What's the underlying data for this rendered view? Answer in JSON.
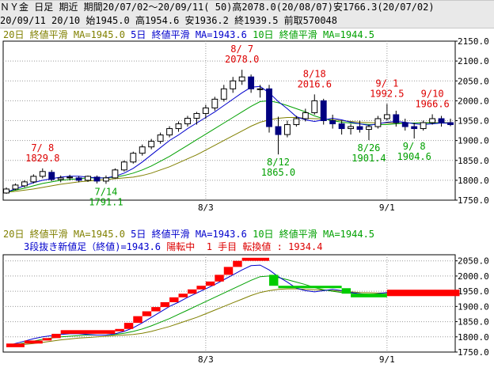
{
  "header": {
    "line1": "ＮＹ金 日足 期近 期間20/07/02～20/09/11( 50)高2078.0(20/08/07)安1766.3(20/07/02)",
    "line2": "20/09/11 20/10 始1945.0 高1954.6 安1936.2 終1939.5 前取570048"
  },
  "legend": {
    "ma20": "20日 終値平滑 MA=1945.0",
    "ma5": "5日 終値平滑 MA=1943.6",
    "ma10": "10日 終値平滑 MA=1944.5"
  },
  "status": {
    "line_break": "3段抜き新値足（終値)=1943.6",
    "trend": "陽転中",
    "step": "1 手目",
    "reversal": "転換値 : 1934.4"
  },
  "colors": {
    "ma20": "#808000",
    "ma5": "#0000cc",
    "ma10": "#00a000",
    "candle_up_border": "#000000",
    "candle_down_fill": "#000080",
    "high_label": "#dd0000",
    "low_label": "#00a000",
    "break_up": "#ff0000",
    "break_down": "#00cc00"
  },
  "chart_data": [
    {
      "type": "candlestick",
      "ylim": [
        1750,
        2150
      ],
      "y_ticks": [
        "2150.0",
        "2100.0",
        "2050.0",
        "2000.0",
        "1950.0",
        "1900.0",
        "1850.0",
        "1800.0",
        "1750.0"
      ],
      "x_ticks": [
        {
          "label": "8/3",
          "index": 22
        },
        {
          "label": "9/1",
          "index": 42
        }
      ],
      "candles": [
        {
          "o": 1768,
          "h": 1782,
          "l": 1766,
          "c": 1778
        },
        {
          "o": 1778,
          "h": 1792,
          "l": 1775,
          "c": 1788
        },
        {
          "o": 1786,
          "h": 1800,
          "l": 1782,
          "c": 1796
        },
        {
          "o": 1796,
          "h": 1815,
          "l": 1792,
          "c": 1810
        },
        {
          "o": 1810,
          "h": 1830,
          "l": 1805,
          "c": 1822
        },
        {
          "o": 1820,
          "h": 1826,
          "l": 1798,
          "c": 1802
        },
        {
          "o": 1802,
          "h": 1812,
          "l": 1795,
          "c": 1806
        },
        {
          "o": 1806,
          "h": 1814,
          "l": 1800,
          "c": 1808
        },
        {
          "o": 1806,
          "h": 1810,
          "l": 1795,
          "c": 1800
        },
        {
          "o": 1800,
          "h": 1812,
          "l": 1796,
          "c": 1810
        },
        {
          "o": 1808,
          "h": 1812,
          "l": 1792,
          "c": 1798
        },
        {
          "o": 1798,
          "h": 1812,
          "l": 1791,
          "c": 1806
        },
        {
          "o": 1806,
          "h": 1830,
          "l": 1804,
          "c": 1826
        },
        {
          "o": 1826,
          "h": 1850,
          "l": 1822,
          "c": 1846
        },
        {
          "o": 1846,
          "h": 1872,
          "l": 1842,
          "c": 1868
        },
        {
          "o": 1868,
          "h": 1890,
          "l": 1862,
          "c": 1884
        },
        {
          "o": 1884,
          "h": 1904,
          "l": 1878,
          "c": 1898
        },
        {
          "o": 1898,
          "h": 1920,
          "l": 1892,
          "c": 1914
        },
        {
          "o": 1914,
          "h": 1936,
          "l": 1908,
          "c": 1930
        },
        {
          "o": 1930,
          "h": 1948,
          "l": 1922,
          "c": 1942
        },
        {
          "o": 1942,
          "h": 1962,
          "l": 1935,
          "c": 1956
        },
        {
          "o": 1956,
          "h": 1972,
          "l": 1940,
          "c": 1968
        },
        {
          "o": 1968,
          "h": 1990,
          "l": 1955,
          "c": 1982
        },
        {
          "o": 1982,
          "h": 2010,
          "l": 1975,
          "c": 2004
        },
        {
          "o": 2004,
          "h": 2040,
          "l": 1998,
          "c": 2030
        },
        {
          "o": 2030,
          "h": 2060,
          "l": 2020,
          "c": 2050
        },
        {
          "o": 2050,
          "h": 2078,
          "l": 2040,
          "c": 2060
        },
        {
          "o": 2060,
          "h": 2066,
          "l": 2020,
          "c": 2030
        },
        {
          "o": 2028,
          "h": 2040,
          "l": 2008,
          "c": 2030
        },
        {
          "o": 2030,
          "h": 2040,
          "l": 1920,
          "c": 1935
        },
        {
          "o": 1935,
          "h": 1960,
          "l": 1865,
          "c": 1915
        },
        {
          "o": 1915,
          "h": 1950,
          "l": 1908,
          "c": 1940
        },
        {
          "o": 1940,
          "h": 1962,
          "l": 1935,
          "c": 1955
        },
        {
          "o": 1955,
          "h": 1980,
          "l": 1948,
          "c": 1970
        },
        {
          "o": 1970,
          "h": 2016,
          "l": 1965,
          "c": 2000
        },
        {
          "o": 2000,
          "h": 2005,
          "l": 1940,
          "c": 1950
        },
        {
          "o": 1950,
          "h": 1965,
          "l": 1930,
          "c": 1942
        },
        {
          "o": 1942,
          "h": 1950,
          "l": 1915,
          "c": 1930
        },
        {
          "o": 1930,
          "h": 1942,
          "l": 1915,
          "c": 1935
        },
        {
          "o": 1935,
          "h": 1950,
          "l": 1920,
          "c": 1928
        },
        {
          "o": 1928,
          "h": 1940,
          "l": 1901,
          "c": 1935
        },
        {
          "o": 1935,
          "h": 1962,
          "l": 1930,
          "c": 1955
        },
        {
          "o": 1955,
          "h": 1992,
          "l": 1950,
          "c": 1965
        },
        {
          "o": 1965,
          "h": 1975,
          "l": 1935,
          "c": 1945
        },
        {
          "o": 1945,
          "h": 1955,
          "l": 1925,
          "c": 1935
        },
        {
          "o": 1935,
          "h": 1945,
          "l": 1905,
          "c": 1930
        },
        {
          "o": 1930,
          "h": 1950,
          "l": 1925,
          "c": 1945
        },
        {
          "o": 1945,
          "h": 1966,
          "l": 1940,
          "c": 1955
        },
        {
          "o": 1955,
          "h": 1962,
          "l": 1935,
          "c": 1945
        },
        {
          "o": 1945,
          "h": 1955,
          "l": 1936,
          "c": 1940
        }
      ],
      "ma5": [
        1770,
        1778,
        1786,
        1794,
        1800,
        1804,
        1808,
        1810,
        1810,
        1808,
        1806,
        1806,
        1810,
        1818,
        1830,
        1846,
        1864,
        1882,
        1900,
        1914,
        1930,
        1944,
        1958,
        1972,
        1988,
        2004,
        2020,
        2034,
        2036,
        2020,
        1998,
        1980,
        1960,
        1952,
        1948,
        1952,
        1956,
        1952,
        1946,
        1942,
        1938,
        1942,
        1946,
        1948,
        1946,
        1942,
        1940,
        1942,
        1944,
        1943.6
      ],
      "ma10": [
        1770,
        1775,
        1780,
        1786,
        1792,
        1796,
        1800,
        1802,
        1804,
        1806,
        1806,
        1806,
        1808,
        1812,
        1818,
        1826,
        1836,
        1848,
        1860,
        1874,
        1888,
        1902,
        1916,
        1930,
        1944,
        1958,
        1972,
        1986,
        1998,
        2000,
        1995,
        1988,
        1980,
        1972,
        1962,
        1955,
        1950,
        1946,
        1944,
        1942,
        1940,
        1940,
        1940,
        1942,
        1944,
        1944,
        1944,
        1944,
        1944,
        1944.5
      ],
      "ma20": [
        1770,
        1772,
        1775,
        1778,
        1782,
        1786,
        1790,
        1793,
        1796,
        1798,
        1800,
        1802,
        1804,
        1806,
        1808,
        1812,
        1818,
        1826,
        1834,
        1844,
        1854,
        1864,
        1876,
        1888,
        1900,
        1912,
        1924,
        1936,
        1946,
        1952,
        1956,
        1958,
        1958,
        1956,
        1955,
        1954,
        1952,
        1950,
        1948,
        1946,
        1945,
        1944,
        1944,
        1944,
        1944,
        1944,
        1945,
        1945,
        1945,
        1945.0
      ],
      "annotations": [
        {
          "date": "7/ 8",
          "value": "1829.8",
          "index": 4,
          "price": 1830,
          "kind": "high"
        },
        {
          "date": "7/14",
          "value": "1791.1",
          "index": 11,
          "price": 1791,
          "kind": "low"
        },
        {
          "date": "8/ 7",
          "value": "2078.0",
          "index": 26,
          "price": 2078,
          "kind": "high"
        },
        {
          "date": "8/12",
          "value": "1865.0",
          "index": 30,
          "price": 1865,
          "kind": "low"
        },
        {
          "date": "8/18",
          "value": "2016.6",
          "index": 34,
          "price": 2016,
          "kind": "high"
        },
        {
          "date": "8/26",
          "value": "1901.4",
          "index": 40,
          "price": 1901,
          "kind": "low"
        },
        {
          "date": "9/ 1",
          "value": "1992.5",
          "index": 42,
          "price": 1992,
          "kind": "high"
        },
        {
          "date": "9/ 8",
          "value": "1904.6",
          "index": 45,
          "price": 1905,
          "kind": "low"
        },
        {
          "date": "9/10",
          "value": "1966.6",
          "index": 47,
          "price": 1966,
          "kind": "high"
        }
      ]
    },
    {
      "type": "three-line-break",
      "ylim": [
        1750,
        2070
      ],
      "y_ticks": [
        "2050.0",
        "2000.0",
        "1950.0",
        "1900.0",
        "1850.0",
        "1800.0",
        "1750.0"
      ],
      "x_ticks": [
        {
          "label": "8/3",
          "index": 22
        },
        {
          "label": "9/1",
          "index": 42
        }
      ],
      "bricks": [
        {
          "from": 1766,
          "to": 1778,
          "up": true,
          "i0": 0,
          "i1": 2
        },
        {
          "from": 1778,
          "to": 1788,
          "up": true,
          "i0": 2,
          "i1": 4
        },
        {
          "from": 1788,
          "to": 1796,
          "up": true,
          "i0": 4,
          "i1": 5
        },
        {
          "from": 1796,
          "to": 1810,
          "up": true,
          "i0": 5,
          "i1": 6
        },
        {
          "from": 1810,
          "to": 1822,
          "up": true,
          "i0": 6,
          "i1": 12
        },
        {
          "from": 1822,
          "to": 1826,
          "up": true,
          "i0": 12,
          "i1": 13
        },
        {
          "from": 1826,
          "to": 1846,
          "up": true,
          "i0": 13,
          "i1": 14
        },
        {
          "from": 1846,
          "to": 1868,
          "up": true,
          "i0": 14,
          "i1": 15
        },
        {
          "from": 1868,
          "to": 1884,
          "up": true,
          "i0": 15,
          "i1": 16
        },
        {
          "from": 1884,
          "to": 1898,
          "up": true,
          "i0": 16,
          "i1": 17
        },
        {
          "from": 1898,
          "to": 1914,
          "up": true,
          "i0": 17,
          "i1": 18
        },
        {
          "from": 1914,
          "to": 1930,
          "up": true,
          "i0": 18,
          "i1": 19
        },
        {
          "from": 1930,
          "to": 1942,
          "up": true,
          "i0": 19,
          "i1": 20
        },
        {
          "from": 1942,
          "to": 1956,
          "up": true,
          "i0": 20,
          "i1": 21
        },
        {
          "from": 1956,
          "to": 1968,
          "up": true,
          "i0": 21,
          "i1": 22
        },
        {
          "from": 1968,
          "to": 1982,
          "up": true,
          "i0": 22,
          "i1": 23
        },
        {
          "from": 1982,
          "to": 2004,
          "up": true,
          "i0": 23,
          "i1": 24
        },
        {
          "from": 2004,
          "to": 2030,
          "up": true,
          "i0": 24,
          "i1": 25
        },
        {
          "from": 2030,
          "to": 2050,
          "up": true,
          "i0": 25,
          "i1": 26
        },
        {
          "from": 2050,
          "to": 2060,
          "up": true,
          "i0": 26,
          "i1": 29
        },
        {
          "from": 2004,
          "to": 1968,
          "up": false,
          "i0": 29,
          "i1": 30
        },
        {
          "from": 1968,
          "to": 1960,
          "up": false,
          "i0": 30,
          "i1": 37
        },
        {
          "from": 1960,
          "to": 1942,
          "up": false,
          "i0": 37,
          "i1": 38
        },
        {
          "from": 1942,
          "to": 1930,
          "up": false,
          "i0": 38,
          "i1": 42
        },
        {
          "from": 1934,
          "to": 1955,
          "up": true,
          "i0": 42,
          "i1": 50
        }
      ],
      "ma5": [
        1770,
        1778,
        1786,
        1794,
        1800,
        1804,
        1808,
        1810,
        1810,
        1808,
        1806,
        1806,
        1810,
        1818,
        1830,
        1846,
        1864,
        1882,
        1900,
        1914,
        1930,
        1944,
        1958,
        1972,
        1988,
        2004,
        2020,
        2034,
        2036,
        2020,
        1998,
        1980,
        1960,
        1952,
        1948,
        1952,
        1956,
        1952,
        1946,
        1942,
        1938,
        1942,
        1946,
        1948,
        1946,
        1942,
        1940,
        1942,
        1944,
        1943.6
      ],
      "ma10": [
        1770,
        1775,
        1780,
        1786,
        1792,
        1796,
        1800,
        1802,
        1804,
        1806,
        1806,
        1806,
        1808,
        1812,
        1818,
        1826,
        1836,
        1848,
        1860,
        1874,
        1888,
        1902,
        1916,
        1930,
        1944,
        1958,
        1972,
        1986,
        1998,
        2000,
        1995,
        1988,
        1980,
        1972,
        1962,
        1955,
        1950,
        1946,
        1944,
        1942,
        1940,
        1940,
        1940,
        1942,
        1944,
        1944,
        1944,
        1944,
        1944,
        1944.5
      ],
      "ma20": [
        1770,
        1772,
        1775,
        1778,
        1782,
        1786,
        1790,
        1793,
        1796,
        1798,
        1800,
        1802,
        1804,
        1806,
        1808,
        1812,
        1818,
        1826,
        1834,
        1844,
        1854,
        1864,
        1876,
        1888,
        1900,
        1912,
        1924,
        1936,
        1946,
        1952,
        1956,
        1958,
        1958,
        1956,
        1955,
        1954,
        1952,
        1950,
        1948,
        1946,
        1945,
        1944,
        1944,
        1944,
        1944,
        1944,
        1945,
        1945,
        1945,
        1945.0
      ]
    }
  ]
}
